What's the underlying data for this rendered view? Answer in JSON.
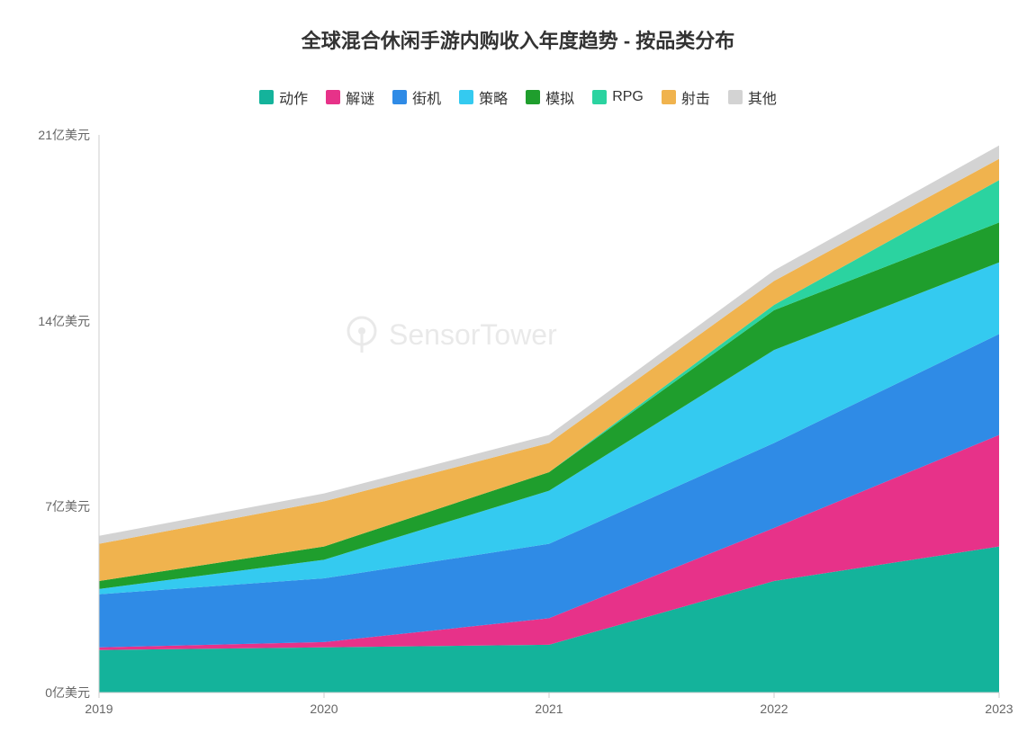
{
  "chart": {
    "type": "stacked-area",
    "title": "全球混合休闲手游内购收入年度趋势 - 按品类分布",
    "title_fontsize": 22,
    "title_color": "#333333",
    "background_color": "#ffffff",
    "watermark_text": "SensorTower",
    "x": {
      "categories": [
        "2019",
        "2020",
        "2021",
        "2022",
        "2023"
      ],
      "label_color": "#666666",
      "label_fontsize": 14
    },
    "y": {
      "min": 0,
      "max": 21,
      "ticks": [
        0,
        7,
        14,
        21
      ],
      "tick_labels": [
        "0亿美元",
        "7亿美元",
        "14亿美元",
        "21亿美元"
      ],
      "label_color": "#666666",
      "label_fontsize": 14
    },
    "axis_color": "#cccccc",
    "series": [
      {
        "key": "action",
        "name": "动作",
        "color": "#14b39b",
        "values": [
          1.6,
          1.7,
          1.8,
          4.2,
          5.5
        ]
      },
      {
        "key": "puzzle",
        "name": "解谜",
        "color": "#e73289",
        "values": [
          0.1,
          0.2,
          1.0,
          2.0,
          4.2
        ]
      },
      {
        "key": "arcade",
        "name": "街机",
        "color": "#2f8be6",
        "values": [
          2.0,
          2.4,
          2.8,
          3.2,
          3.8
        ]
      },
      {
        "key": "strategy",
        "name": "策略",
        "color": "#34caf0",
        "values": [
          0.2,
          0.7,
          2.0,
          3.5,
          2.7
        ]
      },
      {
        "key": "sim",
        "name": "模拟",
        "color": "#1f9e2d",
        "values": [
          0.3,
          0.5,
          0.7,
          1.5,
          1.5
        ]
      },
      {
        "key": "rpg",
        "name": "RPG",
        "color": "#2bd3a0",
        "values": [
          0.0,
          0.0,
          0.0,
          0.2,
          1.6
        ]
      },
      {
        "key": "shooter",
        "name": "射击",
        "color": "#f0b34e",
        "values": [
          1.4,
          1.7,
          1.1,
          0.9,
          0.8
        ]
      },
      {
        "key": "other",
        "name": "其他",
        "color": "#d3d3d3",
        "values": [
          0.3,
          0.3,
          0.3,
          0.4,
          0.5
        ]
      }
    ],
    "legend": {
      "fontsize": 16,
      "text_color": "#333333",
      "swatch_size": 16
    }
  }
}
